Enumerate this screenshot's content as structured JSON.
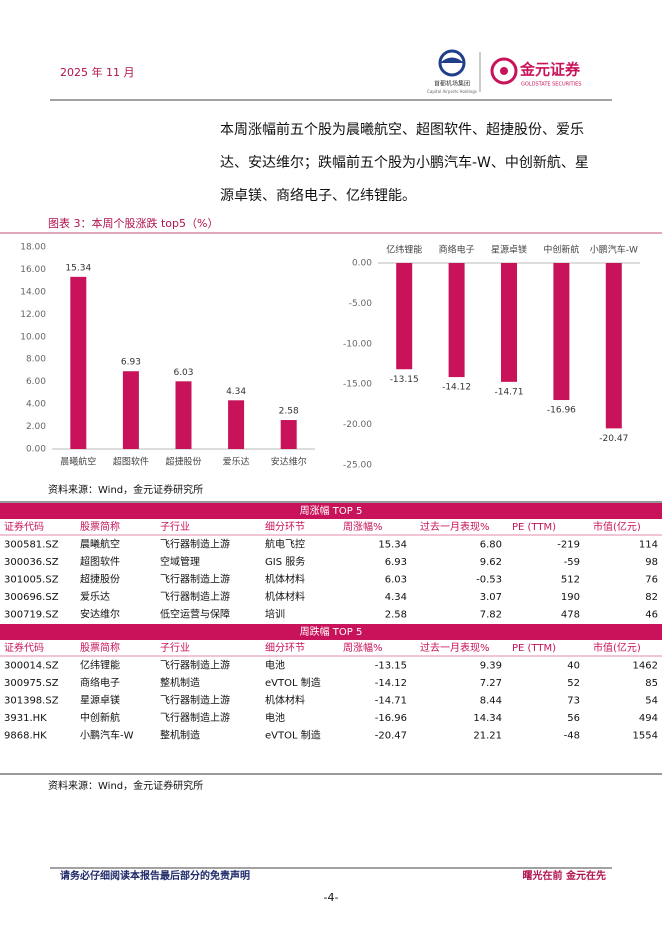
{
  "header": {
    "date": "2025 年 11 月",
    "logo1_cn": "首都机场集团",
    "logo1_en": "Capital Airports Holdings",
    "logo2_cn": "金元证券",
    "logo2_en": "GOLDSTATE SECURITIES"
  },
  "paragraph": [
    "本周涨幅前五个股为晨曦航空、超图软件、超捷股份、爱乐",
    "达、安达维尔；跌幅前五个股为小鹏汽车-W、中创新航、星",
    "源卓镁、商络电子、亿纬锂能。"
  ],
  "figure_title": "图表 3：本周个股涨跌 top5（%）",
  "chart_data": [
    {
      "type": "bar",
      "categories": [
        "晨曦航空",
        "超图软件",
        "超捷股份",
        "爱乐达",
        "安达维尔"
      ],
      "values": [
        15.34,
        6.93,
        6.03,
        4.34,
        2.58
      ],
      "color": "#c8135a",
      "ylim": [
        0,
        18
      ],
      "yticks": [
        {
          "value": 0,
          "label": "0.00"
        },
        {
          "value": 2,
          "label": "2.00"
        },
        {
          "value": 4,
          "label": "4.00"
        },
        {
          "value": 6,
          "label": "6.00"
        },
        {
          "value": 8,
          "label": "8.00"
        },
        {
          "value": 10,
          "label": "10.00"
        },
        {
          "value": 12,
          "label": "12.00"
        },
        {
          "value": 14,
          "label": "14.00"
        },
        {
          "value": 16,
          "label": "16.00"
        },
        {
          "value": 18,
          "label": "18.00"
        }
      ]
    },
    {
      "type": "bar",
      "categories": [
        "亿纬锂能",
        "商络电子",
        "星源卓镁",
        "中创新航",
        "小鹏汽车-W"
      ],
      "values": [
        -13.15,
        -14.12,
        -14.71,
        -16.96,
        -20.47
      ],
      "color": "#c8135a",
      "ylim": [
        -25,
        0
      ],
      "yticks": [
        {
          "value": 0,
          "label": "0.00"
        },
        {
          "value": -5,
          "label": "-5.00"
        },
        {
          "value": -10,
          "label": "-10.00"
        },
        {
          "value": -15,
          "label": "-15.00"
        },
        {
          "value": -20,
          "label": "-20.00"
        },
        {
          "value": -25,
          "label": "-25.00"
        }
      ]
    }
  ],
  "source1": "资料来源：Wind，金元证券研究所",
  "table": {
    "columns": [
      "证券代码",
      "股票简称",
      "子行业",
      "细分环节",
      "周涨幅%",
      "过去一月表现%",
      "PE (TTM)",
      "市值(亿元)"
    ],
    "sections": [
      {
        "title": "周涨幅 TOP 5",
        "rows": [
          [
            "300581.SZ",
            "晨曦航空",
            "飞行器制造上游",
            "航电飞控",
            "15.34",
            "6.80",
            "-219",
            "114"
          ],
          [
            "300036.SZ",
            "超图软件",
            "空域管理",
            "GIS 服务",
            "6.93",
            "9.62",
            "-59",
            "98"
          ],
          [
            "301005.SZ",
            "超捷股份",
            "飞行器制造上游",
            "机体材料",
            "6.03",
            "-0.53",
            "512",
            "76"
          ],
          [
            "300696.SZ",
            "爱乐达",
            "飞行器制造上游",
            "机体材料",
            "4.34",
            "3.07",
            "190",
            "82"
          ],
          [
            "300719.SZ",
            "安达维尔",
            "低空运营与保障",
            "培训",
            "2.58",
            "7.82",
            "478",
            "46"
          ]
        ]
      },
      {
        "title": "周跌幅 TOP 5",
        "rows": [
          [
            "300014.SZ",
            "亿纬锂能",
            "飞行器制造上游",
            "电池",
            "-13.15",
            "9.39",
            "40",
            "1462"
          ],
          [
            "300975.SZ",
            "商络电子",
            "整机制造",
            "eVTOL 制造",
            "-14.12",
            "7.27",
            "52",
            "85"
          ],
          [
            "301398.SZ",
            "星源卓镁",
            "飞行器制造上游",
            "机体材料",
            "-14.71",
            "8.44",
            "73",
            "54"
          ],
          [
            "3931.HK",
            "中创新航",
            "飞行器制造上游",
            "电池",
            "-16.96",
            "14.34",
            "56",
            "494"
          ],
          [
            "9868.HK",
            "小鹏汽车-W",
            "整机制造",
            "eVTOL 制造",
            "-20.47",
            "21.21",
            "-48",
            "1554"
          ]
        ]
      }
    ]
  },
  "source2": "资料来源：Wind，金元证券研究所",
  "footer": {
    "disclaimer": "请务必仔细阅读本报告最后部分的免责声明",
    "slogan": "曙光在前 金元在先",
    "page": "-4-"
  }
}
